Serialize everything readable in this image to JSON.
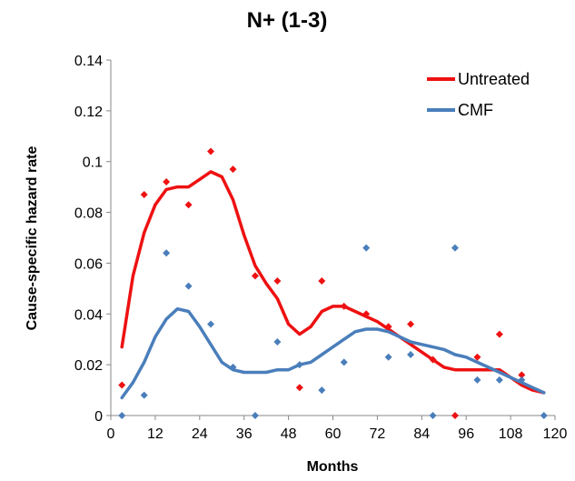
{
  "chart_data": {
    "type": "scatter",
    "title": "N+ (1-3)",
    "xlabel": "Months",
    "ylabel": "Cause-specific hazard rate",
    "xlim": [
      0,
      120
    ],
    "ylim": [
      0,
      0.14
    ],
    "x_ticks": [
      "0",
      "12",
      "24",
      "36",
      "48",
      "60",
      "72",
      "84",
      "96",
      "108",
      "120"
    ],
    "y_ticks": [
      "0",
      "0.02",
      "0.04",
      "0.06",
      "0.08",
      "0.1",
      "0.12",
      "0.14"
    ],
    "grid": false,
    "legend_position": "top-right",
    "series": [
      {
        "name": "Untreated",
        "color": "#ee1111",
        "points": [
          [
            3,
            0.012
          ],
          [
            9,
            0.087
          ],
          [
            15,
            0.092
          ],
          [
            21,
            0.083
          ],
          [
            27,
            0.104
          ],
          [
            33,
            0.097
          ],
          [
            39,
            0.055
          ],
          [
            45,
            0.053
          ],
          [
            51,
            0.011
          ],
          [
            57,
            0.053
          ],
          [
            63,
            0.043
          ],
          [
            69,
            0.04
          ],
          [
            75,
            0.035
          ],
          [
            81,
            0.036
          ],
          [
            87,
            0.022
          ],
          [
            93,
            0.0
          ],
          [
            99,
            0.023
          ],
          [
            105,
            0.032
          ],
          [
            111,
            0.016
          ]
        ],
        "smooth": [
          [
            3,
            0.027
          ],
          [
            6,
            0.055
          ],
          [
            9,
            0.072
          ],
          [
            12,
            0.083
          ],
          [
            15,
            0.089
          ],
          [
            18,
            0.09
          ],
          [
            21,
            0.09
          ],
          [
            24,
            0.093
          ],
          [
            27,
            0.096
          ],
          [
            30,
            0.094
          ],
          [
            33,
            0.085
          ],
          [
            36,
            0.071
          ],
          [
            39,
            0.059
          ],
          [
            42,
            0.052
          ],
          [
            45,
            0.046
          ],
          [
            48,
            0.036
          ],
          [
            51,
            0.032
          ],
          [
            54,
            0.035
          ],
          [
            57,
            0.041
          ],
          [
            60,
            0.043
          ],
          [
            63,
            0.043
          ],
          [
            66,
            0.041
          ],
          [
            69,
            0.039
          ],
          [
            72,
            0.037
          ],
          [
            75,
            0.034
          ],
          [
            78,
            0.031
          ],
          [
            81,
            0.028
          ],
          [
            84,
            0.025
          ],
          [
            87,
            0.022
          ],
          [
            90,
            0.019
          ],
          [
            93,
            0.018
          ],
          [
            96,
            0.018
          ],
          [
            99,
            0.018
          ],
          [
            102,
            0.018
          ],
          [
            105,
            0.018
          ],
          [
            108,
            0.015
          ],
          [
            111,
            0.012
          ],
          [
            114,
            0.01
          ],
          [
            117,
            0.009
          ]
        ]
      },
      {
        "name": "CMF",
        "color": "#4a7ebb",
        "points": [
          [
            3,
            0.0
          ],
          [
            9,
            0.008
          ],
          [
            15,
            0.064
          ],
          [
            21,
            0.051
          ],
          [
            27,
            0.036
          ],
          [
            33,
            0.019
          ],
          [
            39,
            0.0
          ],
          [
            45,
            0.029
          ],
          [
            51,
            0.02
          ],
          [
            57,
            0.01
          ],
          [
            63,
            0.021
          ],
          [
            69,
            0.066
          ],
          [
            75,
            0.023
          ],
          [
            81,
            0.024
          ],
          [
            87,
            0.0
          ],
          [
            93,
            0.066
          ],
          [
            99,
            0.014
          ],
          [
            105,
            0.014
          ],
          [
            111,
            0.014
          ],
          [
            117,
            0.0
          ]
        ],
        "smooth": [
          [
            3,
            0.007
          ],
          [
            6,
            0.013
          ],
          [
            9,
            0.021
          ],
          [
            12,
            0.031
          ],
          [
            15,
            0.038
          ],
          [
            18,
            0.042
          ],
          [
            21,
            0.041
          ],
          [
            24,
            0.035
          ],
          [
            27,
            0.028
          ],
          [
            30,
            0.021
          ],
          [
            33,
            0.018
          ],
          [
            36,
            0.017
          ],
          [
            39,
            0.017
          ],
          [
            42,
            0.017
          ],
          [
            45,
            0.018
          ],
          [
            48,
            0.018
          ],
          [
            51,
            0.02
          ],
          [
            54,
            0.021
          ],
          [
            57,
            0.024
          ],
          [
            60,
            0.027
          ],
          [
            63,
            0.03
          ],
          [
            66,
            0.033
          ],
          [
            69,
            0.034
          ],
          [
            72,
            0.034
          ],
          [
            75,
            0.033
          ],
          [
            78,
            0.031
          ],
          [
            81,
            0.029
          ],
          [
            84,
            0.028
          ],
          [
            87,
            0.027
          ],
          [
            90,
            0.026
          ],
          [
            93,
            0.024
          ],
          [
            96,
            0.023
          ],
          [
            99,
            0.021
          ],
          [
            102,
            0.019
          ],
          [
            105,
            0.017
          ],
          [
            108,
            0.015
          ],
          [
            111,
            0.013
          ],
          [
            114,
            0.011
          ],
          [
            117,
            0.009
          ]
        ]
      }
    ]
  }
}
